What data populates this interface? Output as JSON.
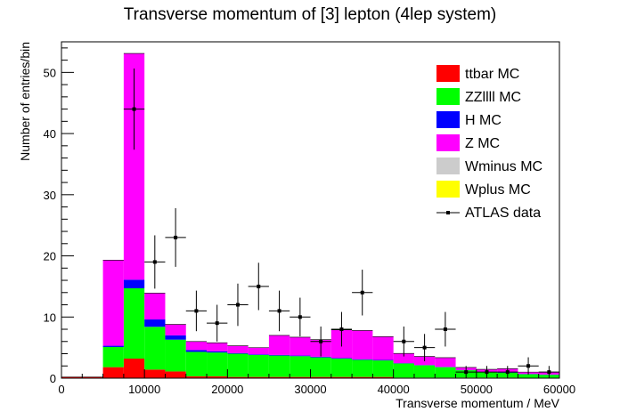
{
  "chart_data": {
    "type": "bar",
    "stacked": true,
    "title": "Transverse momentum of [3] lepton (4lep system)",
    "xlabel": "Transverse momentum / MeV",
    "ylabel": "Number of entries/bin",
    "xlim": [
      0,
      60000
    ],
    "ylim": [
      0,
      55
    ],
    "x_ticks": [
      0,
      10000,
      20000,
      30000,
      40000,
      50000,
      60000
    ],
    "x_tick_labels": [
      "0",
      "10000",
      "20000",
      "30000",
      "40000",
      "50000",
      "60000"
    ],
    "y_ticks": [
      0,
      10,
      20,
      30,
      40,
      50
    ],
    "y_tick_labels": [
      "0",
      "10",
      "20",
      "30",
      "40",
      "50"
    ],
    "bin_edges": [
      0,
      2500,
      5000,
      7500,
      10000,
      12500,
      15000,
      17500,
      20000,
      22500,
      25000,
      27500,
      30000,
      32500,
      35000,
      37500,
      40000,
      42500,
      45000,
      47500,
      50000,
      52500,
      55000,
      57500,
      60000
    ],
    "legend_position": "top-right",
    "series": [
      {
        "name": "ttbar MC",
        "color": "#ff0000",
        "values": [
          0.2,
          0.2,
          1.8,
          3.2,
          1.4,
          1.1,
          0.3,
          0.3,
          0.2,
          0.2,
          0.2,
          0.2,
          0.2,
          0.2,
          0.2,
          0.2,
          0.1,
          0.1,
          0.1,
          0.1,
          0.1,
          0.1,
          0.05,
          0.05
        ]
      },
      {
        "name": "ZZllll MC",
        "color": "#00ff00",
        "values": [
          0,
          0,
          3.3,
          11.5,
          7.0,
          5.2,
          4.0,
          3.9,
          3.8,
          3.6,
          3.5,
          3.4,
          3.2,
          3.0,
          2.8,
          2.7,
          2.3,
          2.0,
          1.7,
          1.2,
          0.9,
          0.8,
          0.6,
          0.5
        ]
      },
      {
        "name": "H MC",
        "color": "#0000ff",
        "values": [
          0,
          0,
          0.2,
          1.4,
          1.2,
          0.7,
          0.3,
          0.2,
          0.1,
          0.1,
          0.1,
          0.1,
          0.1,
          0.1,
          0.1,
          0.1,
          0.05,
          0.05,
          0.05,
          0.05,
          0.05,
          0.05,
          0.05,
          0.05
        ]
      },
      {
        "name": "Z MC",
        "color": "#ff00ff",
        "values": [
          0,
          0,
          14.0,
          37.0,
          4.3,
          1.8,
          1.4,
          1.4,
          1.2,
          1.1,
          3.2,
          3.0,
          2.8,
          4.6,
          4.7,
          3.8,
          1.6,
          1.4,
          1.5,
          0.4,
          0.4,
          0.6,
          0.3,
          0.4
        ]
      },
      {
        "name": "Wminus MC",
        "color": "#cccccc",
        "values": [
          0,
          0,
          0,
          0,
          0,
          0,
          0,
          0,
          0,
          0,
          0,
          0,
          0,
          0,
          0,
          0,
          0,
          0,
          0,
          0,
          0,
          0,
          0,
          0
        ]
      },
      {
        "name": "Wplus MC",
        "color": "#ffff00",
        "values": [
          0,
          0,
          0,
          0,
          0,
          0,
          0,
          0,
          0,
          0,
          0,
          0,
          0,
          0,
          0,
          0,
          0,
          0,
          0,
          0,
          0,
          0,
          0,
          0
        ]
      }
    ],
    "data_series": {
      "name": "ATLAS data",
      "x": [
        8750,
        11250,
        13750,
        16250,
        18750,
        21250,
        23750,
        26250,
        28750,
        31250,
        33750,
        36250,
        41250,
        43750,
        46250,
        48750,
        51250,
        53750,
        56250,
        58750
      ],
      "y": [
        44,
        19,
        23,
        11,
        9,
        12,
        15,
        11,
        10,
        6,
        8,
        14,
        6,
        5,
        8,
        1,
        1,
        1,
        2,
        1
      ]
    }
  }
}
